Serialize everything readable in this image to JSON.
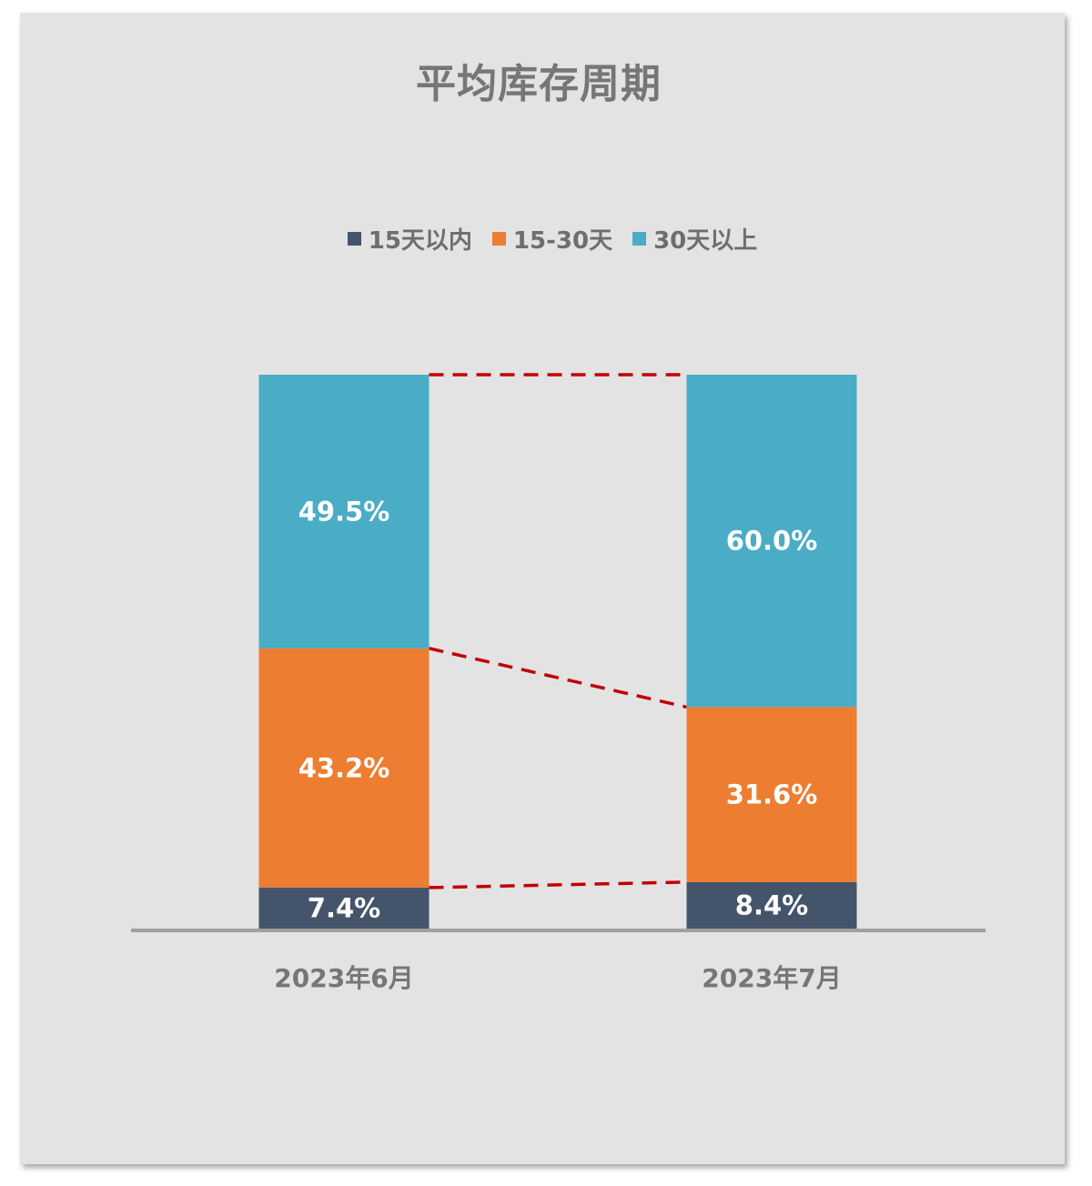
{
  "chart_data": {
    "type": "bar",
    "stacked": true,
    "percent": true,
    "title": "平均库存周期",
    "categories": [
      "2023年6月",
      "2023年7月"
    ],
    "series": [
      {
        "name": "15天以内",
        "values": [
          7.4,
          8.4
        ],
        "labels": [
          "7.4%",
          "8.4%"
        ],
        "color": "#44546a"
      },
      {
        "name": "15-30天",
        "values": [
          43.2,
          31.6
        ],
        "labels": [
          "43.2%",
          "31.6%"
        ],
        "color": "#ed7d31"
      },
      {
        "name": "30天以上",
        "values": [
          49.5,
          60.0
        ],
        "labels": [
          "49.5%",
          "60.0%"
        ],
        "color": "#4bacc6"
      }
    ],
    "ylim": [
      0,
      100
    ],
    "legend_position": "top",
    "grid": false,
    "connector_lines": {
      "style": "dashed",
      "color": "#c00000"
    }
  }
}
